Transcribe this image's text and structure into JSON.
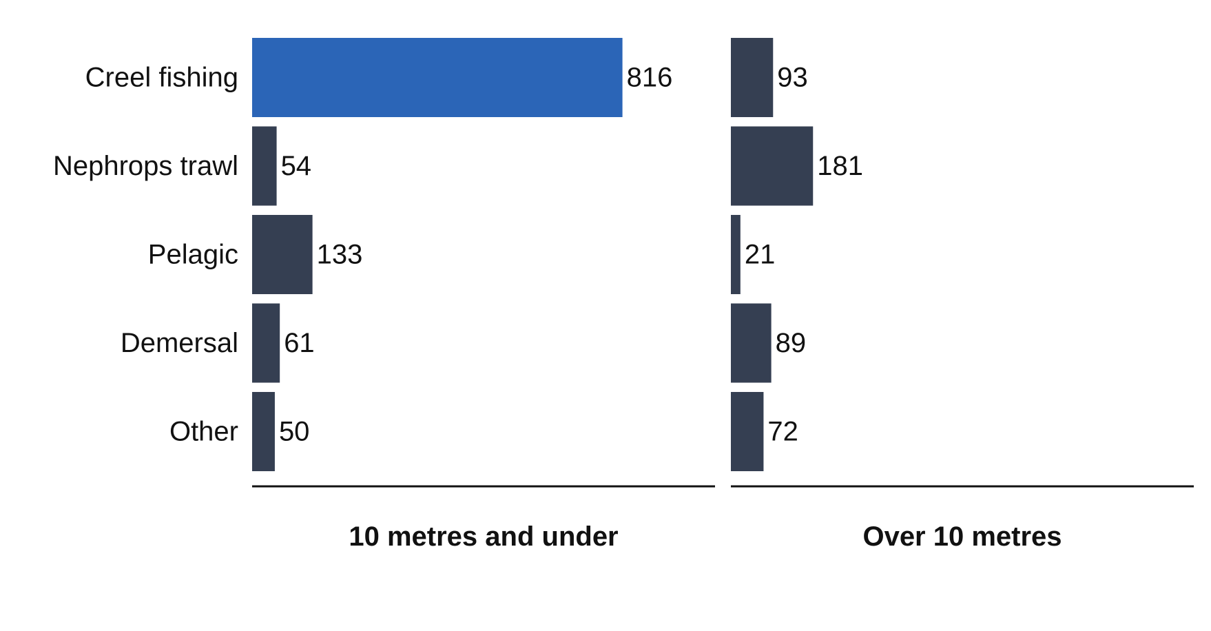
{
  "chart_data": {
    "type": "bar",
    "orientation": "horizontal",
    "categories": [
      "Creel fishing",
      "Nephrops trawl",
      "Pelagic",
      "Demersal",
      "Other"
    ],
    "panels": [
      {
        "title": "10 metres and under",
        "values": [
          816,
          54,
          133,
          61,
          50
        ],
        "xlim": [
          0,
          1020
        ]
      },
      {
        "title": "Over 10 metres",
        "values": [
          93,
          181,
          21,
          89,
          72
        ],
        "xlim": [
          0,
          1020
        ]
      }
    ],
    "colors": {
      "default_bar": "#353f52",
      "highlight_bar": "#2b65b7"
    },
    "highlight": {
      "panel": 0,
      "category": "Creel fishing"
    },
    "grid": false,
    "legend": "none"
  }
}
